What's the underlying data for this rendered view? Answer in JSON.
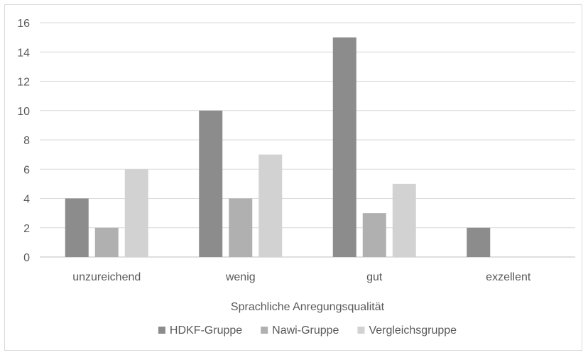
{
  "chart_data": {
    "type": "bar",
    "title": "",
    "xlabel": "Sprachliche Anregungsqualität",
    "ylabel": "",
    "ylim": [
      0,
      16
    ],
    "yticks": [
      0,
      2,
      4,
      6,
      8,
      10,
      12,
      14,
      16
    ],
    "grid": true,
    "legend_position": "bottom",
    "categories": [
      "unzureichend",
      "wenig",
      "gut",
      "exzellent"
    ],
    "series": [
      {
        "name": "HDKF-Gruppe",
        "color": "#8c8c8c",
        "values": [
          4,
          10,
          15,
          2
        ]
      },
      {
        "name": "Nawi-Gruppe",
        "color": "#b0b0b0",
        "values": [
          2,
          4,
          3,
          0
        ]
      },
      {
        "name": "Vergleichsgruppe",
        "color": "#d2d2d2",
        "values": [
          6,
          7,
          5,
          0
        ]
      }
    ]
  }
}
